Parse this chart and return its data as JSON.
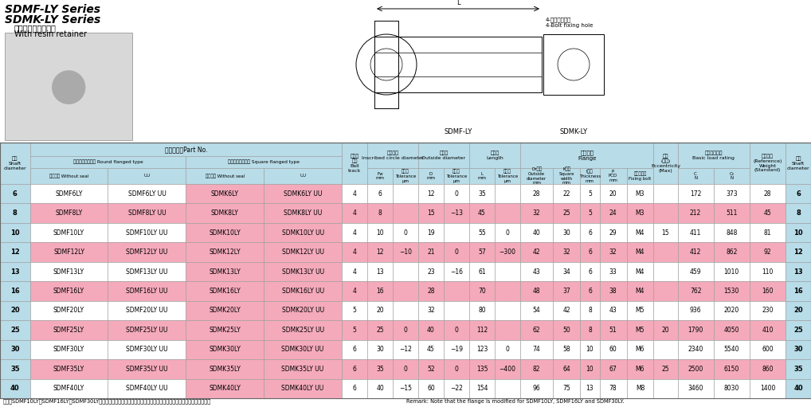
{
  "title_line1": "SDMF-LY Series",
  "title_line2": "SDMK-LY Series",
  "subtitle1": "ナイロン保持器付き",
  "subtitle2": "With resin retainer",
  "light_blue": "#B8DCE8",
  "pink": "#F4AABB",
  "white": "#FFFFFF",
  "rows": [
    [
      "6",
      "SDMF6LY",
      "SDMF6LY UU",
      "SDMK6LY",
      "SDMK6LY UU",
      "4",
      "6",
      "",
      "12",
      "0",
      "35",
      "",
      "28",
      "22",
      "5",
      "20",
      "M3",
      "",
      "172",
      "373",
      "28",
      "6"
    ],
    [
      "8",
      "SDMF8LY",
      "SDMF8LY UU",
      "SDMK8LY",
      "SDMK8LY UU",
      "4",
      "8",
      "",
      "15",
      "−13",
      "45",
      "",
      "32",
      "25",
      "5",
      "24",
      "M3",
      "",
      "212",
      "511",
      "45",
      "8"
    ],
    [
      "10",
      "SDMF10LY",
      "SDMF10LY UU",
      "SDMK10LY",
      "SDMK10LY UU",
      "4",
      "10",
      "0",
      "19",
      "",
      "55",
      "0",
      "40",
      "30",
      "6",
      "29",
      "M4",
      "15",
      "411",
      "848",
      "81",
      "10"
    ],
    [
      "12",
      "SDMF12LY",
      "SDMF12LY UU",
      "SDMK12LY",
      "SDMK12LY UU",
      "4",
      "12",
      "−10",
      "21",
      "0",
      "57",
      "−300",
      "42",
      "32",
      "6",
      "32",
      "M4",
      "",
      "412",
      "862",
      "92",
      "12"
    ],
    [
      "13",
      "SDMF13LY",
      "SDMF13LY UU",
      "SDMK13LY",
      "SDMK13LY UU",
      "4",
      "13",
      "",
      "23",
      "−16",
      "61",
      "",
      "43",
      "34",
      "6",
      "33",
      "M4",
      "",
      "459",
      "1010",
      "110",
      "13"
    ],
    [
      "16",
      "SDMF16LY",
      "SDMF16LY UU",
      "SDMK16LY",
      "SDMK16LY UU",
      "4",
      "16",
      "",
      "28",
      "",
      "70",
      "",
      "48",
      "37",
      "6",
      "38",
      "M4",
      "",
      "762",
      "1530",
      "160",
      "16"
    ],
    [
      "20",
      "SDMF20LY",
      "SDMF20LY UU",
      "SDMK20LY",
      "SDMK20LY UU",
      "5",
      "20",
      "",
      "32",
      "",
      "80",
      "",
      "54",
      "42",
      "8",
      "43",
      "M5",
      "",
      "936",
      "2020",
      "230",
      "20"
    ],
    [
      "25",
      "SDMF25LY",
      "SDMF25LY UU",
      "SDMK25LY",
      "SDMK25LY UU",
      "5",
      "25",
      "0",
      "40",
      "0",
      "112",
      "",
      "62",
      "50",
      "8",
      "51",
      "M5",
      "20",
      "1790",
      "4050",
      "410",
      "25"
    ],
    [
      "30",
      "SDMF30LY",
      "SDMF30LY UU",
      "SDMK30LY",
      "SDMK30LY UU",
      "6",
      "30",
      "−12",
      "45",
      "−19",
      "123",
      "0",
      "74",
      "58",
      "10",
      "60",
      "M6",
      "",
      "2340",
      "5540",
      "600",
      "30"
    ],
    [
      "35",
      "SDMF35LY",
      "SDMF35LY UU",
      "SDMK35LY",
      "SDMK35LY UU",
      "6",
      "35",
      "0",
      "52",
      "0",
      "135",
      "−400",
      "82",
      "64",
      "10",
      "67",
      "M6",
      "25",
      "2500",
      "6150",
      "860",
      "35"
    ],
    [
      "40",
      "SDMF40LY",
      "SDMF40LY UU",
      "SDMK40LY",
      "SDMK40LY UU",
      "6",
      "40",
      "−15",
      "60",
      "−22",
      "154",
      "",
      "96",
      "75",
      "13",
      "78",
      "M8",
      "",
      "3460",
      "8030",
      "1400",
      "40"
    ]
  ],
  "pink_rows": [
    1,
    3,
    5,
    7,
    9
  ],
  "note_jp": "備考　SDMF10LY、SDMF16LY、SDMF30LYは、モデルチェンジしたフランジを採用致しておりますのでご注意ください。",
  "note_en": "Remark: Note that the flange is modified for SDMF10LY, SDMF16LY and SDMF30LY."
}
